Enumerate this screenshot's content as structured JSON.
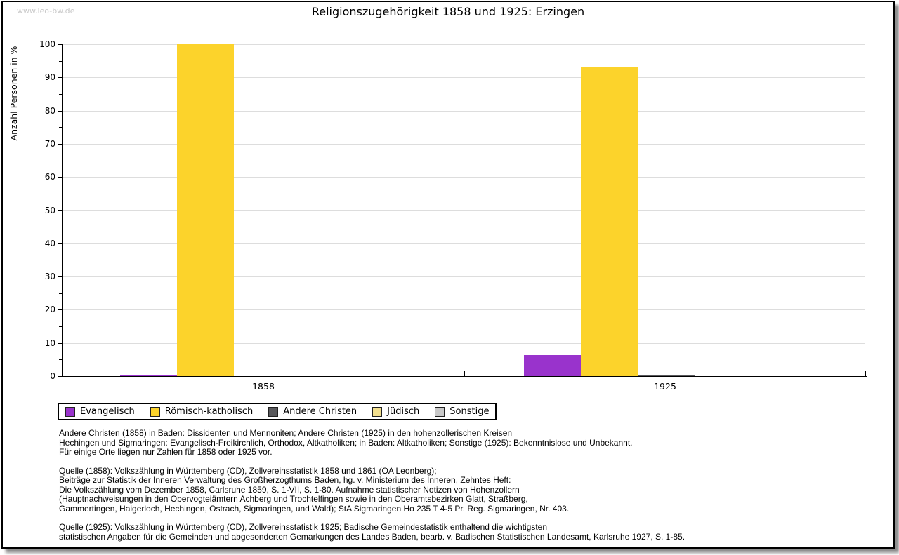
{
  "watermark": "www.leo-bw.de",
  "chart_data": {
    "type": "bar",
    "title": "Religionszugehörigkeit 1858 und 1925: Erzingen",
    "xlabel": "",
    "ylabel": "Anzahl Personen in %",
    "ylim": [
      0,
      100
    ],
    "y_major_tick_step": 10,
    "y_minor_tick_step": 5,
    "grid": "horizontal major gridlines, light gray",
    "legend_position": "bottom-left, boxed",
    "categories": [
      "1858",
      "1925"
    ],
    "series": [
      {
        "name": "Evangelisch",
        "color": "#9933cc",
        "values": [
          0.3,
          6.3
        ]
      },
      {
        "name": "Römisch-katholisch",
        "color": "#fcd32b",
        "values": [
          100,
          93
        ]
      },
      {
        "name": "Andere Christen",
        "color": "#58585b",
        "values": [
          0,
          0.4
        ]
      },
      {
        "name": "Jüdisch",
        "color": "#f2df8e",
        "values": [
          0,
          0
        ]
      },
      {
        "name": "Sonstige",
        "color": "#c9c9c9",
        "values": [
          0,
          0
        ]
      }
    ]
  },
  "footnotes": [
    {
      "lines": [
        "Andere Christen (1858) in Baden: Dissidenten und Mennoniten; Andere Christen (1925) in den hohenzollerischen Kreisen",
        "Hechingen und Sigmaringen: Evangelisch-Freikirchlich, Orthodox, Altkatholiken; in Baden: Altkatholiken; Sonstige (1925): Bekenntnislose und Unbekannt.",
        "Für einige Orte liegen nur Zahlen für 1858 oder 1925 vor."
      ]
    },
    {
      "lines": [
        "Quelle (1858): Volkszählung in Württemberg (CD), Zollvereinsstatistik 1858 und 1861 (OA Leonberg);",
        "Beiträge zur Statistik der Inneren Verwaltung des Großherzogthums Baden, hg. v. Ministerium des Inneren, Zehntes Heft:",
        "Die Volkszählung vom Dezember 1858, Carlsruhe 1859, S. 1-VII, S. 1-80. Aufnahme statistischer Notizen von Hohenzollern",
        "(Hauptnachweisungen in den Obervogteiämtern Achberg und Trochtelfingen sowie in den Oberamtsbezirken Glatt, Straßberg,",
        "Gammertingen, Haigerloch, Hechingen, Ostrach, Sigmaringen, und Wald); StA Sigmaringen Ho 235 T 4-5 Pr. Reg. Sigmaringen, Nr. 403."
      ]
    },
    {
      "lines": [
        "Quelle (1925): Volkszählung in Württemberg (CD), Zollvereinsstatistik 1925; Badische Gemeindestatistik enthaltend die wichtigsten",
        "statistischen Angaben für die Gemeinden und abgesonderten Gemarkungen des Landes Baden, bearb. v. Badischen Statistischen Landesamt, Karlsruhe 1927, S. 1-85."
      ]
    }
  ]
}
